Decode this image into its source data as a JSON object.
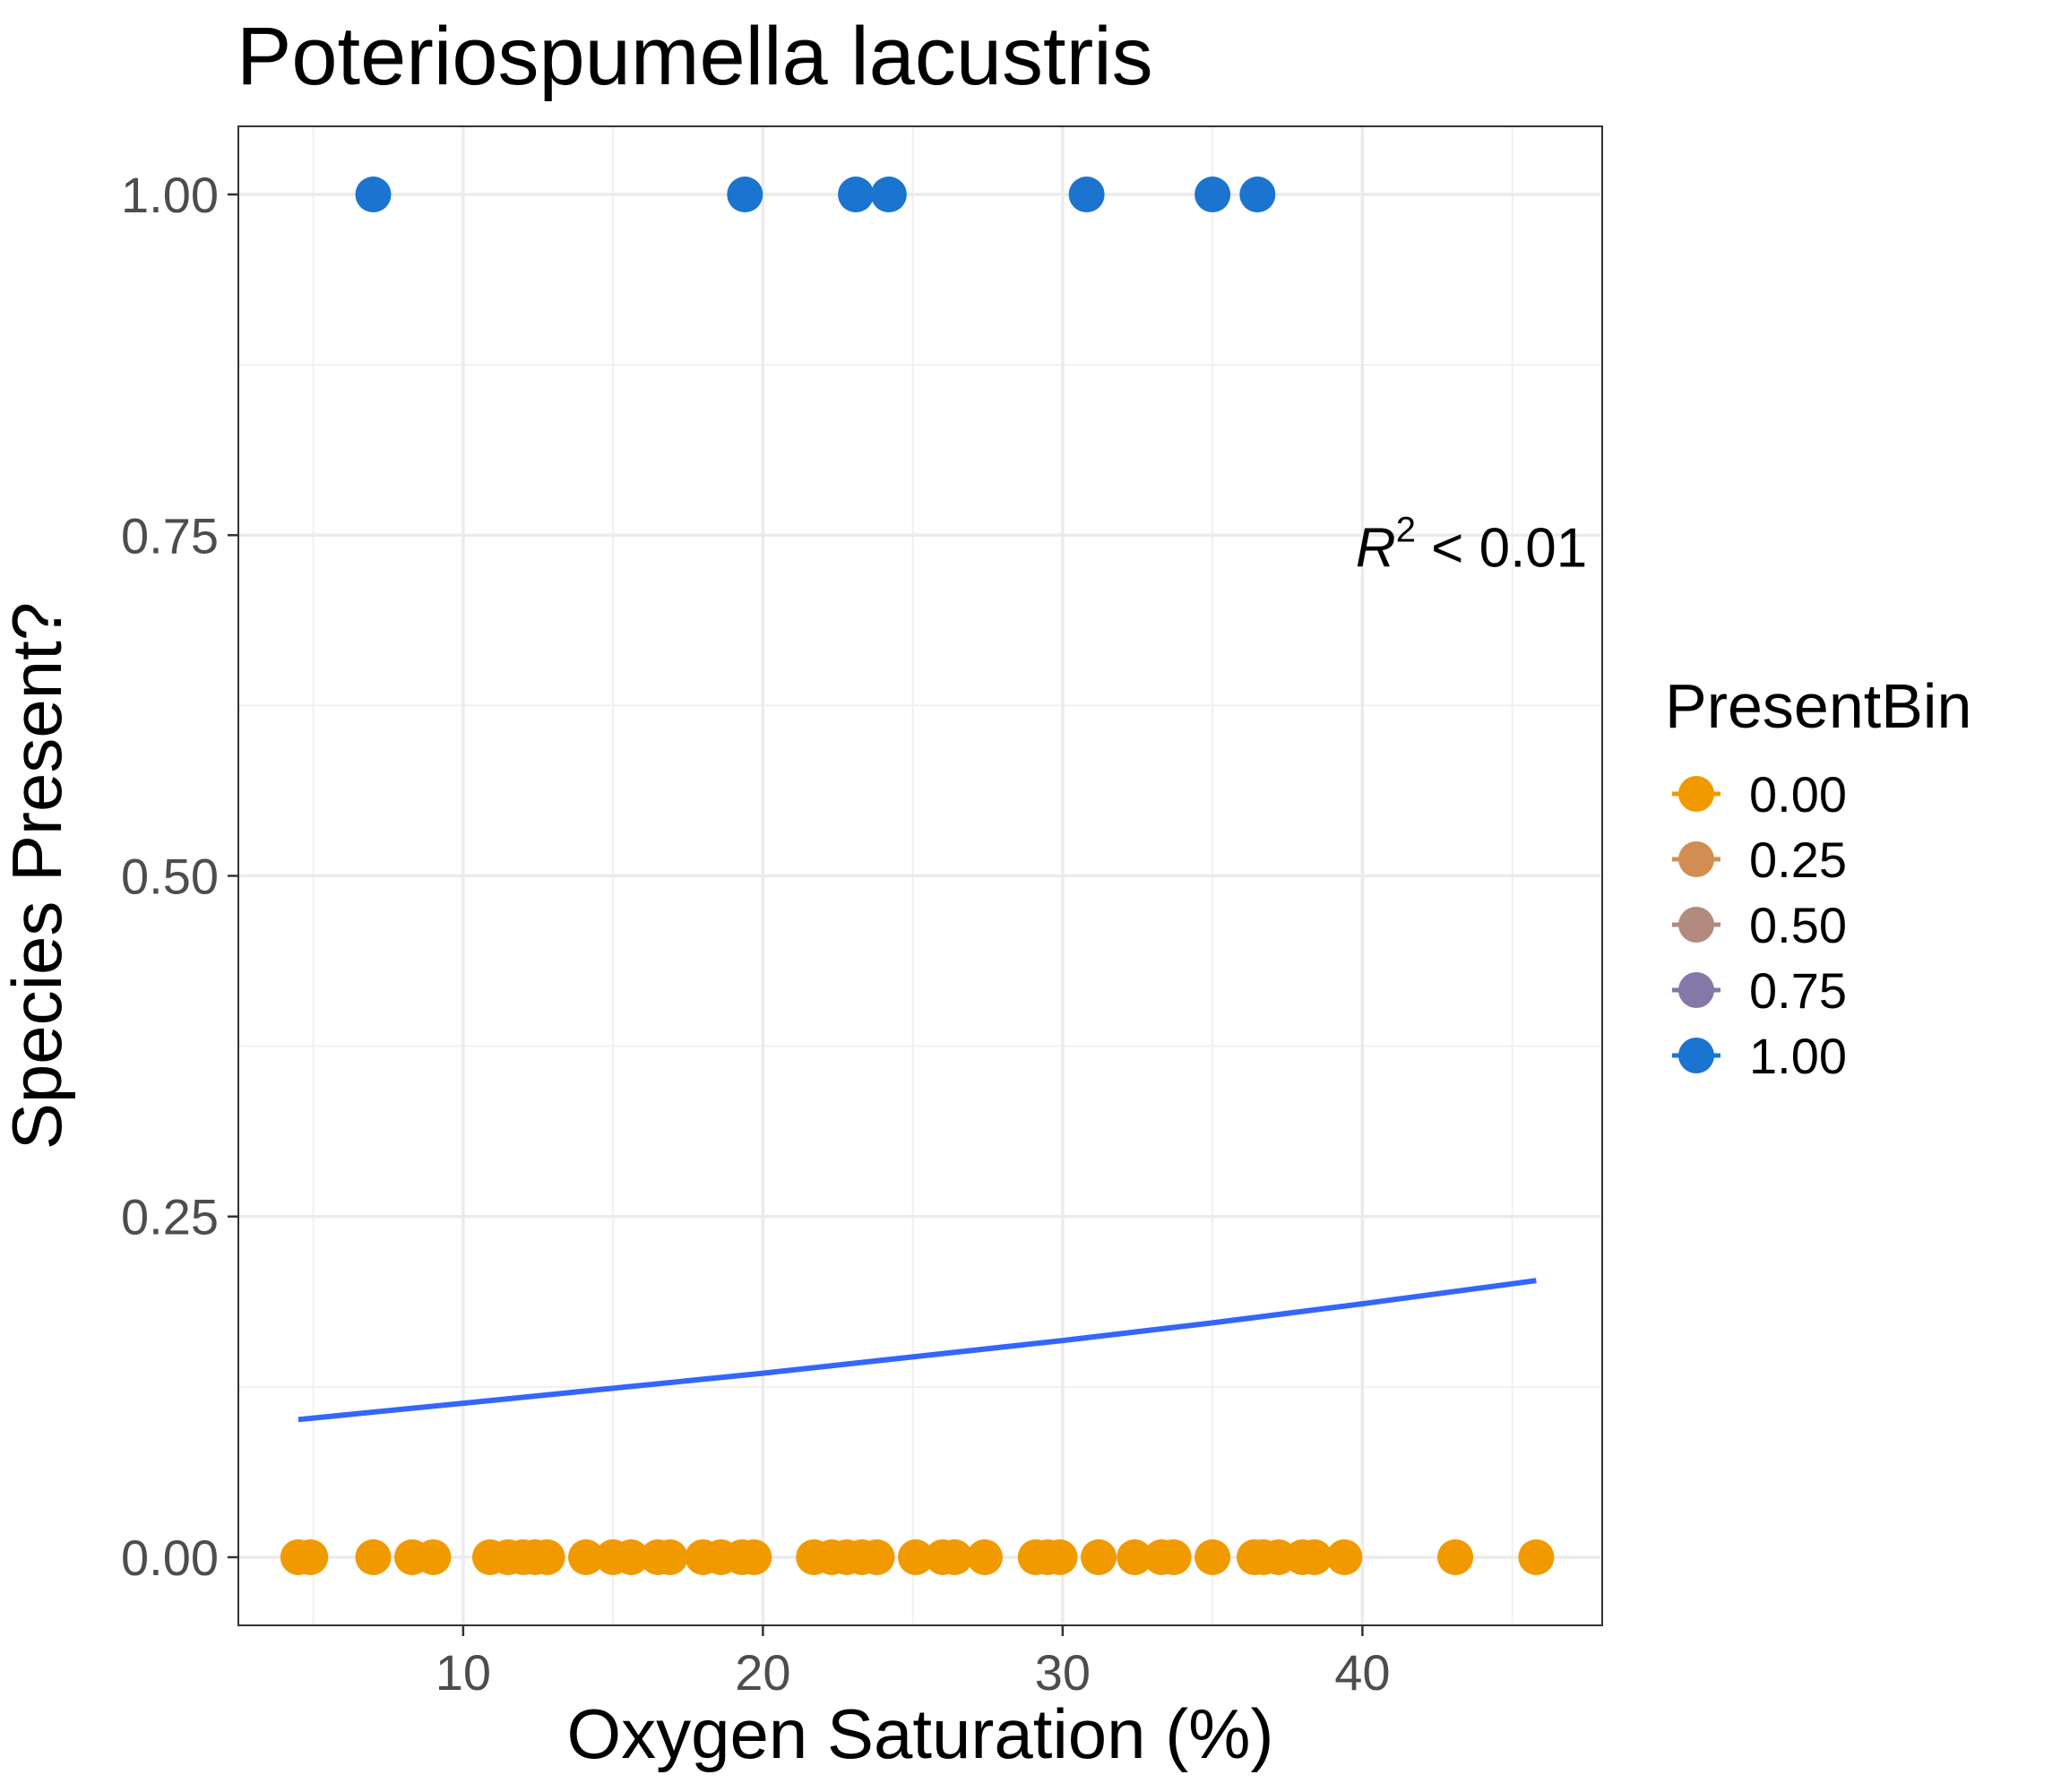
{
  "chart_data": {
    "type": "scatter",
    "title": "Poteriospumella lacustris",
    "xlabel": "Oxygen Saturation (%)",
    "ylabel": "Species Present?",
    "xlim": [
      2.5,
      48
    ],
    "ylim": [
      -0.05,
      1.05
    ],
    "xticks": [
      10,
      20,
      30,
      40
    ],
    "xtick_labels": [
      "10",
      "20",
      "30",
      "40"
    ],
    "yticks": [
      0,
      0.25,
      0.5,
      0.75,
      1.0
    ],
    "ytick_labels": [
      "0.00",
      "0.25",
      "0.50",
      "0.75",
      "1.00"
    ],
    "grid": true,
    "legend": {
      "title": "PresentBin",
      "placement": "right",
      "entries": [
        {
          "label": "0.00",
          "color": "#F09A00"
        },
        {
          "label": "0.25",
          "color": "#D28E52"
        },
        {
          "label": "0.50",
          "color": "#B28A7E"
        },
        {
          "label": "0.75",
          "color": "#8478A8"
        },
        {
          "label": "1.00",
          "color": "#1A74D0"
        }
      ]
    },
    "annotation": {
      "prefix": "R",
      "superscript": "2",
      "text": " < 0.01",
      "x": 47.5,
      "y": 0.74
    },
    "series": [
      {
        "name": "1.00",
        "color": "#1A74D0",
        "x": [
          7.0,
          19.4,
          23.1,
          24.2,
          30.8,
          35.0,
          36.5
        ],
        "y": [
          1,
          1,
          1,
          1,
          1,
          1,
          1
        ]
      },
      {
        "name": "0.00",
        "color": "#F09A00",
        "x": [
          4.5,
          4.9,
          7.0,
          8.3,
          9.0,
          10.9,
          11.5,
          12.0,
          12.4,
          12.8,
          14.1,
          15.0,
          15.6,
          16.5,
          16.9,
          18.0,
          18.6,
          19.3,
          19.7,
          21.7,
          22.3,
          22.8,
          23.3,
          23.8,
          25.1,
          26.0,
          26.4,
          27.4,
          29.1,
          29.5,
          29.9,
          31.2,
          32.4,
          33.3,
          33.7,
          35.0,
          36.4,
          36.7,
          37.2,
          38.0,
          38.4,
          39.4,
          43.1,
          45.8
        ],
        "y": [
          0,
          0,
          0,
          0,
          0,
          0,
          0,
          0,
          0,
          0,
          0,
          0,
          0,
          0,
          0,
          0,
          0,
          0,
          0,
          0,
          0,
          0,
          0,
          0,
          0,
          0,
          0,
          0,
          0,
          0,
          0,
          0,
          0,
          0,
          0,
          0,
          0,
          0,
          0,
          0,
          0,
          0,
          0,
          0
        ]
      }
    ],
    "fit_line": {
      "color": "#3366FF",
      "x": [
        4.5,
        10,
        15,
        20,
        25,
        30,
        35,
        40,
        45.8
      ],
      "y": [
        0.101,
        0.113,
        0.124,
        0.135,
        0.147,
        0.159,
        0.172,
        0.186,
        0.203
      ]
    }
  }
}
